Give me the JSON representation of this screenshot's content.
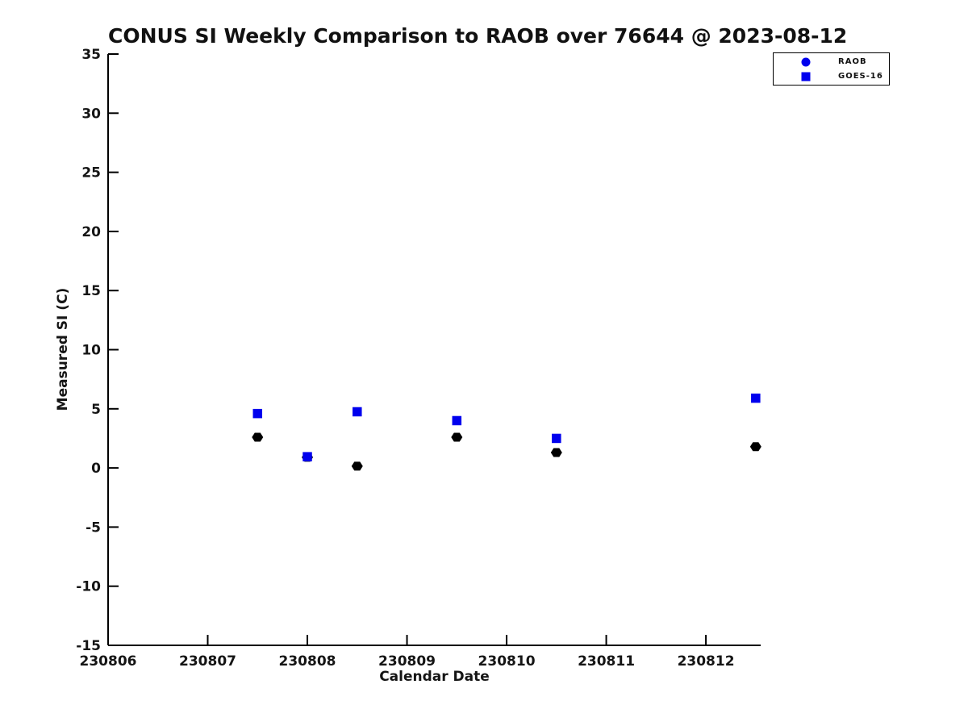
{
  "chart_data": {
    "type": "scatter",
    "title": "CONUS SI Weekly Comparison to RAOB over 76644 @ 2023-08-12",
    "xlabel": "Calendar Date",
    "ylabel": "Measured SI (C)",
    "xlim": [
      230806,
      230812.55
    ],
    "ylim": [
      -15,
      35
    ],
    "xticks": [
      230806,
      230807,
      230808,
      230809,
      230810,
      230811,
      230812
    ],
    "yticks": [
      -15,
      -10,
      -5,
      0,
      5,
      10,
      15,
      20,
      25,
      30,
      35
    ],
    "grid": false,
    "legend": {
      "position": "top-right",
      "entries": [
        {
          "label": "RAOB",
          "marker": "circle-icon",
          "color": "#0000ee"
        },
        {
          "label": "GOES-16",
          "marker": "square-icon",
          "color": "#0000ee"
        }
      ]
    },
    "series": [
      {
        "name": "RAOB",
        "marker": "hexagon",
        "color": "#000000",
        "points": [
          [
            230807.5,
            2.6
          ],
          [
            230808.0,
            0.9
          ],
          [
            230808.5,
            0.15
          ],
          [
            230809.5,
            2.6
          ],
          [
            230810.5,
            1.3
          ],
          [
            230812.5,
            1.8
          ]
        ]
      },
      {
        "name": "GOES-16",
        "marker": "square",
        "color": "#0000ee",
        "points": [
          [
            230807.5,
            4.6
          ],
          [
            230808.0,
            0.95
          ],
          [
            230808.5,
            4.75
          ],
          [
            230809.5,
            4.0
          ],
          [
            230810.5,
            2.5
          ],
          [
            230812.5,
            5.9
          ]
        ]
      }
    ],
    "colors": {
      "axis": "#000000",
      "text": "#151515",
      "marker_blue": "#0000ee",
      "marker_black": "#000000",
      "background": "#ffffff"
    }
  }
}
